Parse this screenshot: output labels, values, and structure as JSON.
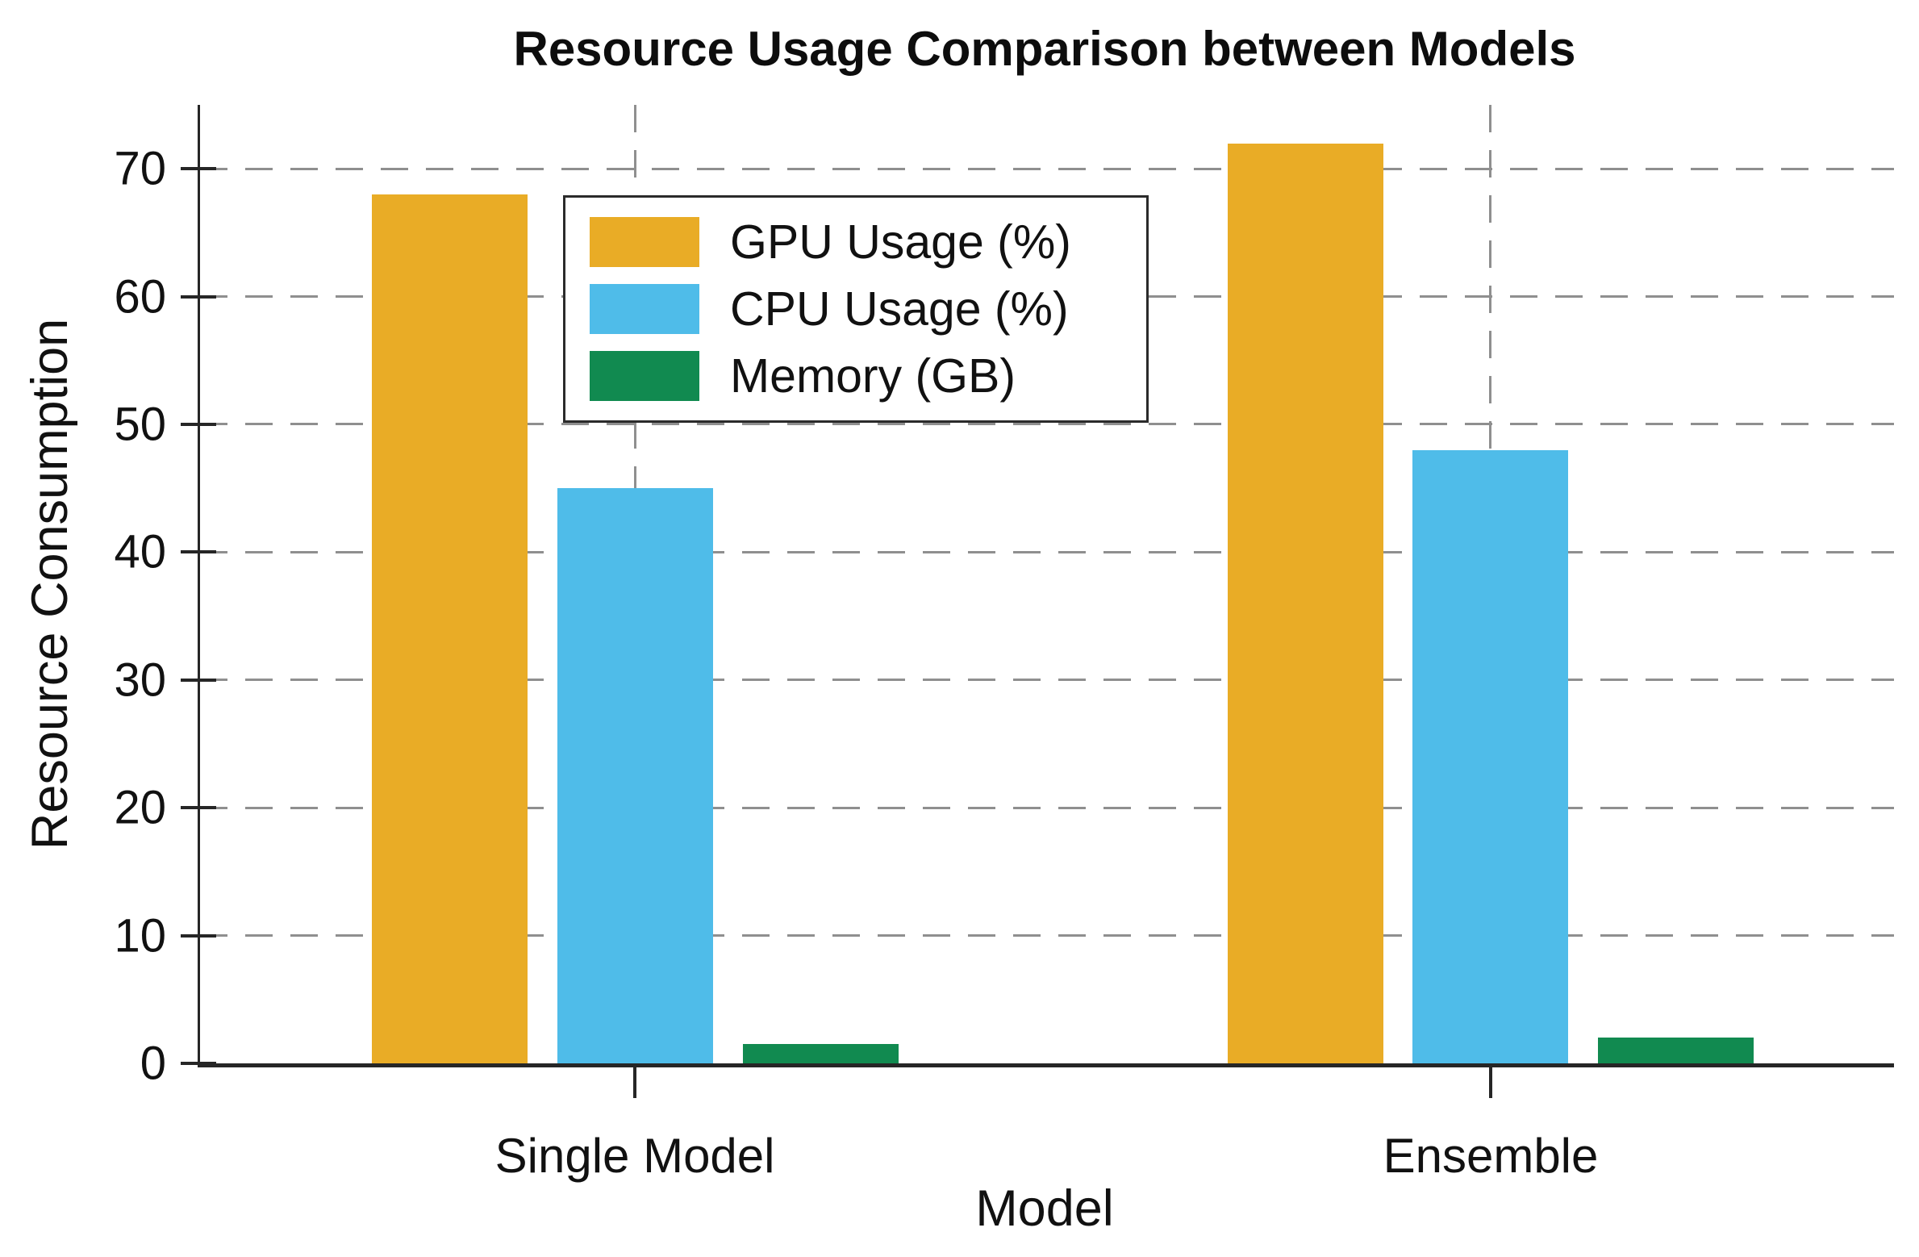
{
  "title": "Resource Usage Comparison between Models",
  "chart_data": {
    "type": "bar",
    "title": "Resource Usage Comparison between Models",
    "categories": [
      "Single Model",
      "Ensemble"
    ],
    "series": [
      {
        "name": "GPU Usage (%)",
        "color": "#E9AC26",
        "values": [
          68,
          72
        ]
      },
      {
        "name": "CPU Usage (%)",
        "color": "#4FBCE9",
        "values": [
          45,
          48
        ]
      },
      {
        "name": "Memory (GB)",
        "color": "#118A50",
        "values": [
          1.5,
          2
        ]
      }
    ],
    "xlabel": "Model",
    "ylabel": "Resource Consumption",
    "ylim": [
      0,
      75
    ],
    "yticks": [
      0,
      10,
      20,
      30,
      40,
      50,
      60,
      70
    ],
    "grid": true,
    "grid_style": "dashed",
    "grid_color": "#8f8f8f",
    "legend_position": "upper-left-inside",
    "axis_color": "#262626"
  }
}
